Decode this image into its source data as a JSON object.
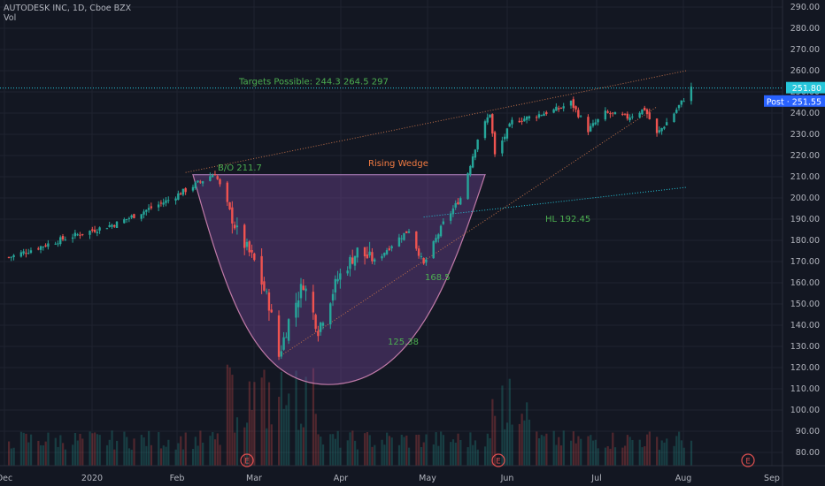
{
  "header": {
    "title": "AUTODESK INC, 1D, Cboe BZX",
    "volume_label": "Vol"
  },
  "colors": {
    "background": "#131722",
    "up": "#26a69a",
    "down": "#ef5350",
    "wedge_line": "#c0704a",
    "pattern_fill": "#7b4aa0",
    "target_line": "#26c6da",
    "annotation_green": "#4caf50",
    "annotation_orange": "#f57c42"
  },
  "chart_data": {
    "type": "candlestick",
    "ylim": [
      75,
      295
    ],
    "y_ticks": [
      "290.00",
      "280.00",
      "270.00",
      "260.00",
      "250.00",
      "240.00",
      "230.00",
      "220.00",
      "210.00",
      "200.00",
      "190.00",
      "180.00",
      "170.00",
      "160.00",
      "150.00",
      "140.00",
      "130.00",
      "120.00",
      "110.00",
      "100.00",
      "90.00",
      "80.00"
    ],
    "x_ticks": [
      "Dec",
      "2020",
      "Feb",
      "Mar",
      "Apr",
      "May",
      "Jun",
      "Jul",
      "Aug",
      "Sep"
    ],
    "price_tags": [
      {
        "label": "251.80",
        "value": 251.8,
        "color": "#26c6da"
      },
      {
        "label": "Post · 251.55",
        "value": 245.5,
        "color": "#2962ff"
      }
    ],
    "anchors": [
      {
        "date": "2019-11-27",
        "close": 172
      },
      {
        "date": "2019-12-20",
        "close": 181
      },
      {
        "date": "2020-01-10",
        "close": 188
      },
      {
        "date": "2020-01-31",
        "close": 199
      },
      {
        "date": "2020-02-19",
        "close": 211.7
      },
      {
        "date": "2020-02-24",
        "close": 197
      },
      {
        "date": "2020-02-28",
        "close": 184
      },
      {
        "date": "2020-03-06",
        "close": 170
      },
      {
        "date": "2020-03-12",
        "close": 150
      },
      {
        "date": "2020-03-16",
        "close": 125.38
      },
      {
        "date": "2020-03-20",
        "close": 142
      },
      {
        "date": "2020-03-26",
        "close": 160
      },
      {
        "date": "2020-04-01",
        "close": 138
      },
      {
        "date": "2020-04-09",
        "close": 162
      },
      {
        "date": "2020-04-17",
        "close": 175
      },
      {
        "date": "2020-04-24",
        "close": 170
      },
      {
        "date": "2020-05-01",
        "close": 178
      },
      {
        "date": "2020-05-08",
        "close": 185
      },
      {
        "date": "2020-05-14",
        "close": 168.5
      },
      {
        "date": "2020-05-22",
        "close": 188
      },
      {
        "date": "2020-05-29",
        "close": 200
      },
      {
        "date": "2020-06-05",
        "close": 228
      },
      {
        "date": "2020-06-10",
        "close": 240
      },
      {
        "date": "2020-06-12",
        "close": 220
      },
      {
        "date": "2020-06-19",
        "close": 236
      },
      {
        "date": "2020-06-26",
        "close": 238
      },
      {
        "date": "2020-07-08",
        "close": 242
      },
      {
        "date": "2020-07-13",
        "close": 245
      },
      {
        "date": "2020-07-20",
        "close": 232
      },
      {
        "date": "2020-07-27",
        "close": 240
      },
      {
        "date": "2020-08-05",
        "close": 238
      },
      {
        "date": "2020-08-12",
        "close": 242
      },
      {
        "date": "2020-08-17",
        "close": 230
      },
      {
        "date": "2020-08-24",
        "close": 240
      },
      {
        "date": "2020-08-31",
        "close": 251.8
      }
    ],
    "annotations": {
      "targets": "Targets Possible:  244.3    264.5    297",
      "breakout": "B/O  211.7",
      "pattern": "Rising Wedge",
      "higher_low": "HL 192.45",
      "mid_low": "168.5",
      "bottom": "125.38"
    },
    "earnings_markers": [
      "E",
      "E",
      "E"
    ]
  }
}
